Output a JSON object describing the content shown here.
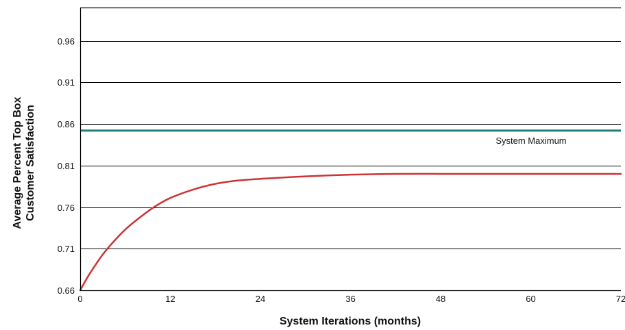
{
  "chart_data": {
    "type": "line",
    "title": "",
    "xlabel": "System Iterations (months)",
    "ylabel_lines": [
      "Average Percent Top Box",
      "Customer Satisfaction"
    ],
    "xlim": [
      0,
      72
    ],
    "ylim": [
      0.66,
      1.0
    ],
    "x_ticks": [
      0,
      12,
      24,
      36,
      48,
      60,
      72
    ],
    "x_tick_labels": [
      "0",
      "12",
      "24",
      "36",
      "48",
      "60",
      "72"
    ],
    "y_ticks": [
      0.66,
      0.71,
      0.76,
      0.81,
      0.86,
      0.91,
      0.96
    ],
    "y_tick_labels": [
      "0.66",
      "0.71",
      "0.76",
      "0.81",
      "0.86",
      "0.91",
      "0.96"
    ],
    "grid": "horizontal",
    "series": [
      {
        "color": "#cc3333",
        "x": [
          0,
          1,
          2,
          3,
          4,
          6,
          8,
          10,
          12,
          15,
          18,
          21,
          24,
          30,
          36,
          42,
          48,
          54,
          60,
          66,
          72
        ],
        "y": [
          0.66,
          0.676,
          0.69,
          0.703,
          0.714,
          0.733,
          0.748,
          0.761,
          0.771,
          0.781,
          0.788,
          0.792,
          0.794,
          0.797,
          0.799,
          0.8,
          0.8,
          0.8,
          0.8,
          0.8,
          0.8
        ]
      }
    ],
    "reference_lines": [
      {
        "label": "System Maximum",
        "y": 0.852,
        "color": "#1f7f7f"
      }
    ],
    "colors": {
      "grid": "#000000",
      "axis": "#000000",
      "curve": "#cc3333",
      "maximum_line": "#1f7f7f"
    }
  }
}
